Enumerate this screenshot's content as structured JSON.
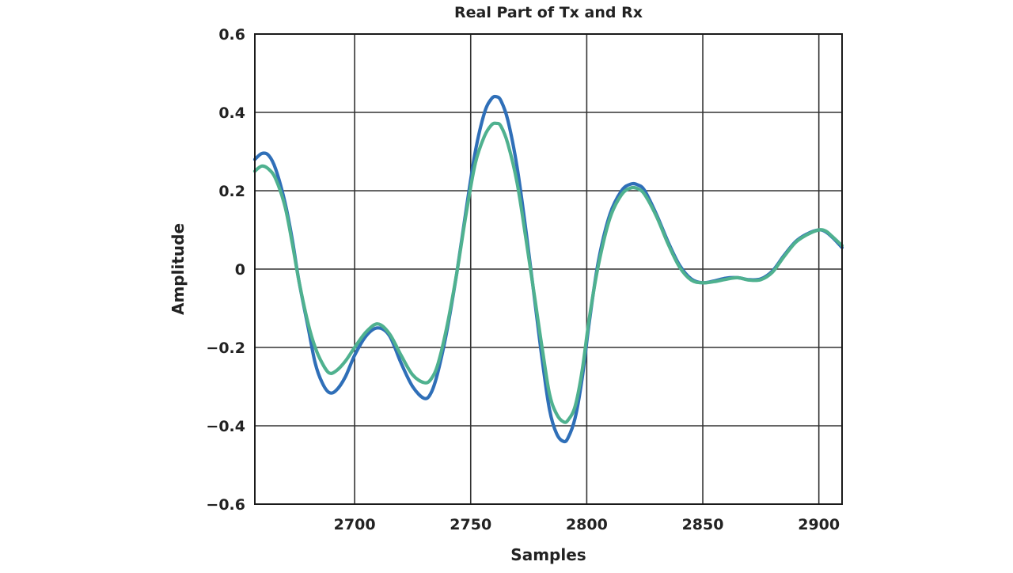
{
  "chart_data": {
    "type": "line",
    "title": "Real Part of Tx and Rx",
    "xlabel": "Samples",
    "ylabel": "Amplitude",
    "xlim": [
      2657,
      2910
    ],
    "ylim": [
      -0.6,
      0.6
    ],
    "x_ticks": [
      {
        "value": 2700,
        "label": "2700"
      },
      {
        "value": 2750,
        "label": "2750"
      },
      {
        "value": 2800,
        "label": "2800"
      },
      {
        "value": 2850,
        "label": "2850"
      },
      {
        "value": 2900,
        "label": "2900"
      }
    ],
    "y_ticks": [
      {
        "value": 0.6,
        "label": "0.6"
      },
      {
        "value": 0.4,
        "label": "0.4"
      },
      {
        "value": 0.2,
        "label": "0.2"
      },
      {
        "value": 0,
        "label": "0"
      },
      {
        "value": -0.2,
        "label": "−0.2"
      },
      {
        "value": -0.4,
        "label": "−0.4"
      },
      {
        "value": -0.6,
        "label": "−0.6"
      }
    ],
    "grid": true,
    "legend": false,
    "series": [
      {
        "color": "#2f6fb8",
        "x": [
          2657,
          2660,
          2663,
          2666,
          2670,
          2673,
          2676,
          2680,
          2683,
          2686,
          2689,
          2692,
          2696,
          2700,
          2705,
          2710,
          2715,
          2720,
          2725,
          2730,
          2733,
          2736,
          2740,
          2744,
          2748,
          2752,
          2756,
          2759,
          2761,
          2763,
          2766,
          2770,
          2774,
          2778,
          2781,
          2784,
          2787,
          2790,
          2792,
          2795,
          2798,
          2801,
          2805,
          2810,
          2815,
          2819,
          2822,
          2825,
          2830,
          2835,
          2840,
          2845,
          2850,
          2855,
          2860,
          2865,
          2870,
          2875,
          2880,
          2885,
          2890,
          2895,
          2900,
          2903,
          2906,
          2910
        ],
        "y": [
          0.28,
          0.295,
          0.29,
          0.255,
          0.17,
          0.08,
          -0.03,
          -0.15,
          -0.24,
          -0.29,
          -0.315,
          -0.31,
          -0.275,
          -0.22,
          -0.17,
          -0.15,
          -0.17,
          -0.24,
          -0.3,
          -0.33,
          -0.315,
          -0.26,
          -0.15,
          -0.01,
          0.15,
          0.3,
          0.4,
          0.435,
          0.44,
          0.43,
          0.38,
          0.26,
          0.09,
          -0.1,
          -0.24,
          -0.36,
          -0.42,
          -0.44,
          -0.43,
          -0.38,
          -0.28,
          -0.14,
          0.02,
          0.14,
          0.2,
          0.217,
          0.215,
          0.2,
          0.14,
          0.07,
          0.01,
          -0.025,
          -0.035,
          -0.03,
          -0.023,
          -0.022,
          -0.027,
          -0.025,
          -0.005,
          0.035,
          0.07,
          0.09,
          0.1,
          0.095,
          0.08,
          0.055
        ]
      },
      {
        "color": "#4fb18f",
        "x": [
          2657,
          2660,
          2663,
          2666,
          2670,
          2673,
          2676,
          2680,
          2683,
          2686,
          2689,
          2692,
          2696,
          2700,
          2705,
          2710,
          2715,
          2720,
          2725,
          2730,
          2733,
          2736,
          2740,
          2744,
          2748,
          2752,
          2756,
          2759,
          2761,
          2763,
          2766,
          2770,
          2774,
          2778,
          2781,
          2784,
          2787,
          2790,
          2792,
          2795,
          2798,
          2801,
          2805,
          2810,
          2815,
          2819,
          2822,
          2825,
          2830,
          2835,
          2840,
          2845,
          2850,
          2855,
          2860,
          2865,
          2870,
          2875,
          2880,
          2885,
          2890,
          2895,
          2900,
          2903,
          2906,
          2910
        ],
        "y": [
          0.25,
          0.263,
          0.255,
          0.23,
          0.16,
          0.07,
          -0.03,
          -0.14,
          -0.2,
          -0.24,
          -0.265,
          -0.26,
          -0.235,
          -0.2,
          -0.16,
          -0.14,
          -0.165,
          -0.22,
          -0.27,
          -0.29,
          -0.28,
          -0.24,
          -0.14,
          -0.01,
          0.14,
          0.27,
          0.34,
          0.368,
          0.372,
          0.365,
          0.32,
          0.22,
          0.07,
          -0.09,
          -0.21,
          -0.32,
          -0.37,
          -0.39,
          -0.385,
          -0.35,
          -0.26,
          -0.13,
          0.01,
          0.13,
          0.19,
          0.207,
          0.205,
          0.19,
          0.135,
          0.065,
          0.005,
          -0.028,
          -0.035,
          -0.032,
          -0.026,
          -0.022,
          -0.028,
          -0.027,
          -0.008,
          0.032,
          0.068,
          0.088,
          0.1,
          0.097,
          0.082,
          0.06
        ]
      }
    ]
  }
}
